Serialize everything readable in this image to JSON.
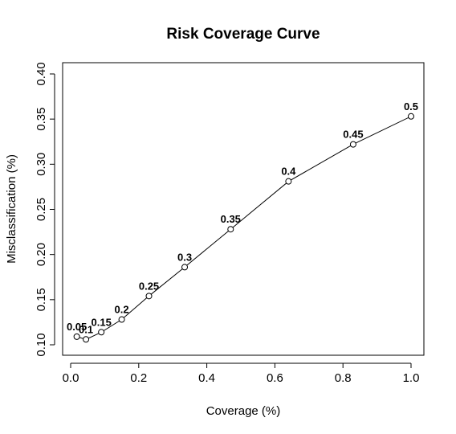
{
  "chart_data": {
    "type": "line",
    "title": "Risk Coverage Curve",
    "xlabel": "Coverage (%)",
    "ylabel": "Misclassification (%)",
    "xlim": [
      0.0,
      1.0
    ],
    "ylim": [
      0.1,
      0.4
    ],
    "x_ticks": [
      "0.0",
      "0.2",
      "0.4",
      "0.6",
      "0.8",
      "1.0"
    ],
    "y_ticks": [
      "0.10",
      "0.15",
      "0.20",
      "0.25",
      "0.30",
      "0.35",
      "0.40"
    ],
    "series": [
      {
        "points": [
          {
            "label": "0.05",
            "x": 0.018,
            "y": 0.109
          },
          {
            "label": "0.1",
            "x": 0.045,
            "y": 0.106
          },
          {
            "label": "0.15",
            "x": 0.09,
            "y": 0.114
          },
          {
            "label": "0.2",
            "x": 0.15,
            "y": 0.128
          },
          {
            "label": "0.25",
            "x": 0.23,
            "y": 0.154
          },
          {
            "label": "0.3",
            "x": 0.335,
            "y": 0.186
          },
          {
            "label": "0.35",
            "x": 0.47,
            "y": 0.228
          },
          {
            "label": "0.4",
            "x": 0.64,
            "y": 0.281
          },
          {
            "label": "0.45",
            "x": 0.83,
            "y": 0.322
          },
          {
            "label": "0.5",
            "x": 1.0,
            "y": 0.353
          }
        ]
      }
    ],
    "grid": false,
    "legend": "none"
  }
}
